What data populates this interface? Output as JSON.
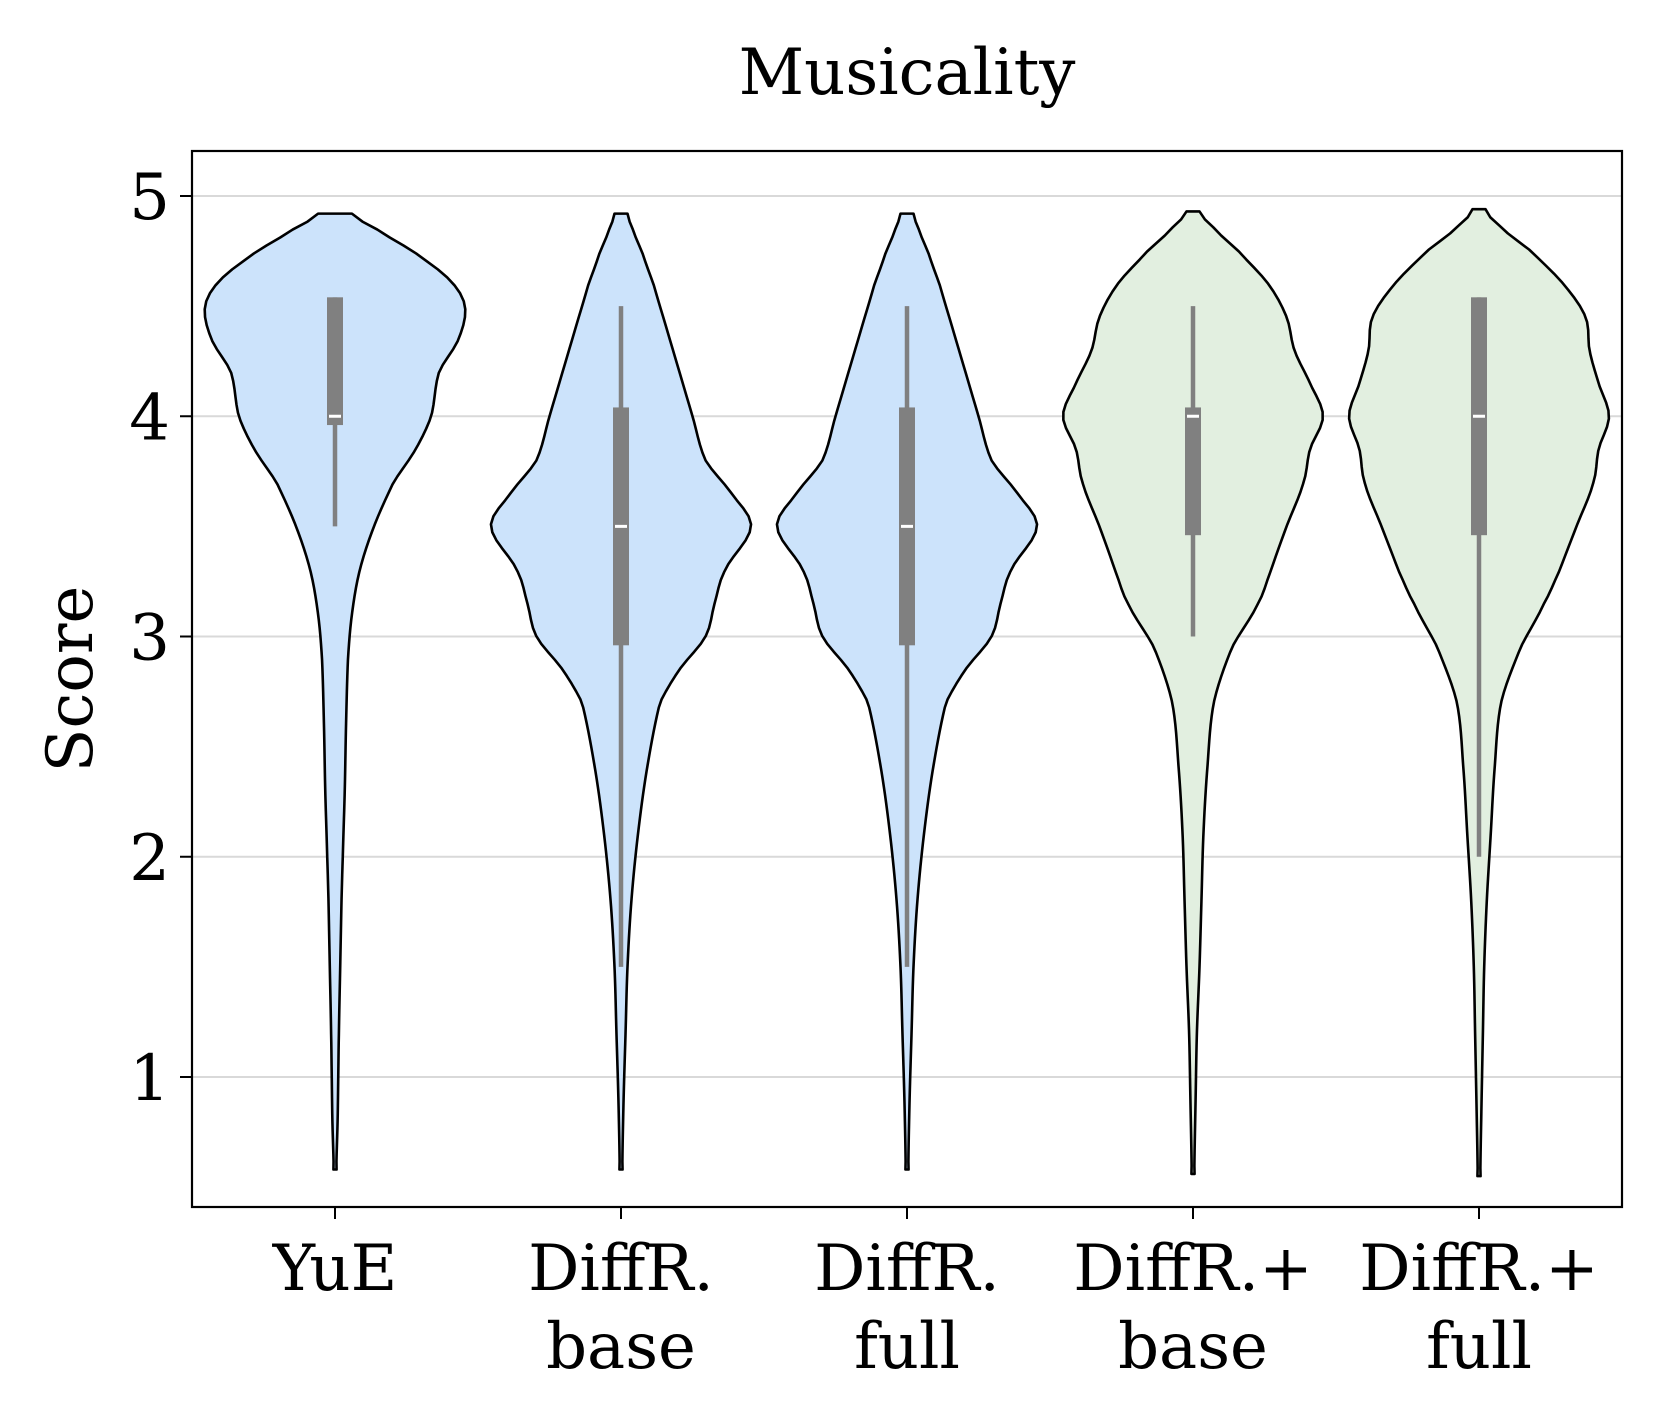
{
  "chart_data": {
    "type": "violin",
    "title": "Musicality",
    "xlabel": "",
    "ylabel": "Score",
    "ylim": [
      0.45,
      5.25
    ],
    "yticks": [
      1,
      2,
      3,
      4,
      5
    ],
    "grid": "horizontal",
    "categories": [
      {
        "label": "YuE",
        "lines": [
          "YuE"
        ],
        "color": "#cce3fb",
        "q1": 3.96,
        "median": 4.0,
        "q3": 4.54,
        "whisker_low": 3.5,
        "whisker_high": 4.54,
        "min": 0.58,
        "max": 4.92,
        "density": [
          [
            0.58,
            0.01
          ],
          [
            0.8,
            0.02
          ],
          [
            1.0,
            0.025
          ],
          [
            1.2,
            0.03
          ],
          [
            1.5,
            0.04
          ],
          [
            1.8,
            0.05
          ],
          [
            2.0,
            0.06
          ],
          [
            2.3,
            0.075
          ],
          [
            2.6,
            0.085
          ],
          [
            2.9,
            0.1
          ],
          [
            3.1,
            0.13
          ],
          [
            3.3,
            0.19
          ],
          [
            3.5,
            0.3
          ],
          [
            3.7,
            0.45
          ],
          [
            3.85,
            0.62
          ],
          [
            4.0,
            0.74
          ],
          [
            4.2,
            0.8
          ],
          [
            4.35,
            0.95
          ],
          [
            4.5,
            1.0
          ],
          [
            4.62,
            0.88
          ],
          [
            4.75,
            0.6
          ],
          [
            4.85,
            0.32
          ],
          [
            4.92,
            0.13
          ]
        ]
      },
      {
        "label": "DiffR. base",
        "lines": [
          "DiffR.",
          "base"
        ],
        "color": "#cce3fb",
        "q1": 2.96,
        "median": 3.5,
        "q3": 4.04,
        "whisker_low": 1.5,
        "whisker_high": 4.5,
        "min": 0.58,
        "max": 4.92,
        "density": [
          [
            0.58,
            0.01
          ],
          [
            0.9,
            0.02
          ],
          [
            1.2,
            0.035
          ],
          [
            1.5,
            0.05
          ],
          [
            1.8,
            0.08
          ],
          [
            2.1,
            0.13
          ],
          [
            2.4,
            0.2
          ],
          [
            2.7,
            0.3
          ],
          [
            2.85,
            0.45
          ],
          [
            3.0,
            0.65
          ],
          [
            3.15,
            0.72
          ],
          [
            3.3,
            0.8
          ],
          [
            3.5,
            1.0
          ],
          [
            3.65,
            0.85
          ],
          [
            3.8,
            0.65
          ],
          [
            4.0,
            0.55
          ],
          [
            4.2,
            0.45
          ],
          [
            4.4,
            0.35
          ],
          [
            4.6,
            0.25
          ],
          [
            4.75,
            0.16
          ],
          [
            4.85,
            0.09
          ],
          [
            4.92,
            0.05
          ]
        ]
      },
      {
        "label": "DiffR. full",
        "lines": [
          "DiffR.",
          "full"
        ],
        "color": "#cce3fb",
        "q1": 2.96,
        "median": 3.5,
        "q3": 4.04,
        "whisker_low": 1.5,
        "whisker_high": 4.5,
        "min": 0.58,
        "max": 4.92,
        "density": [
          [
            0.58,
            0.01
          ],
          [
            0.9,
            0.02
          ],
          [
            1.2,
            0.035
          ],
          [
            1.5,
            0.05
          ],
          [
            1.8,
            0.08
          ],
          [
            2.1,
            0.13
          ],
          [
            2.4,
            0.2
          ],
          [
            2.7,
            0.3
          ],
          [
            2.85,
            0.45
          ],
          [
            3.0,
            0.65
          ],
          [
            3.15,
            0.72
          ],
          [
            3.3,
            0.8
          ],
          [
            3.5,
            1.0
          ],
          [
            3.65,
            0.85
          ],
          [
            3.8,
            0.65
          ],
          [
            4.0,
            0.55
          ],
          [
            4.2,
            0.45
          ],
          [
            4.4,
            0.35
          ],
          [
            4.6,
            0.25
          ],
          [
            4.75,
            0.16
          ],
          [
            4.85,
            0.09
          ],
          [
            4.92,
            0.05
          ]
        ]
      },
      {
        "label": "DiffR.+ base",
        "lines": [
          "DiffR.+",
          "base"
        ],
        "color": "#e2efe0",
        "q1": 3.46,
        "median": 4.0,
        "q3": 4.04,
        "whisker_low": 3.0,
        "whisker_high": 4.5,
        "min": 0.56,
        "max": 4.93,
        "density": [
          [
            0.56,
            0.01
          ],
          [
            0.9,
            0.02
          ],
          [
            1.2,
            0.03
          ],
          [
            1.5,
            0.05
          ],
          [
            1.8,
            0.065
          ],
          [
            2.1,
            0.08
          ],
          [
            2.4,
            0.11
          ],
          [
            2.7,
            0.16
          ],
          [
            2.95,
            0.3
          ],
          [
            3.15,
            0.5
          ],
          [
            3.3,
            0.6
          ],
          [
            3.5,
            0.72
          ],
          [
            3.7,
            0.85
          ],
          [
            3.85,
            0.9
          ],
          [
            4.0,
            1.0
          ],
          [
            4.15,
            0.9
          ],
          [
            4.3,
            0.78
          ],
          [
            4.45,
            0.72
          ],
          [
            4.6,
            0.58
          ],
          [
            4.75,
            0.35
          ],
          [
            4.87,
            0.14
          ],
          [
            4.93,
            0.05
          ]
        ]
      },
      {
        "label": "DiffR.+ full",
        "lines": [
          "DiffR.+",
          "full"
        ],
        "color": "#e2efe0",
        "q1": 3.46,
        "median": 4.0,
        "q3": 4.54,
        "whisker_low": 2.0,
        "whisker_high": 4.54,
        "min": 0.55,
        "max": 4.94,
        "density": [
          [
            0.55,
            0.01
          ],
          [
            0.9,
            0.02
          ],
          [
            1.2,
            0.03
          ],
          [
            1.5,
            0.04
          ],
          [
            1.8,
            0.06
          ],
          [
            2.1,
            0.09
          ],
          [
            2.4,
            0.12
          ],
          [
            2.7,
            0.17
          ],
          [
            2.95,
            0.32
          ],
          [
            3.15,
            0.5
          ],
          [
            3.3,
            0.62
          ],
          [
            3.5,
            0.75
          ],
          [
            3.7,
            0.88
          ],
          [
            3.85,
            0.92
          ],
          [
            4.0,
            1.0
          ],
          [
            4.15,
            0.92
          ],
          [
            4.3,
            0.85
          ],
          [
            4.45,
            0.82
          ],
          [
            4.6,
            0.65
          ],
          [
            4.75,
            0.4
          ],
          [
            4.87,
            0.15
          ],
          [
            4.94,
            0.05
          ]
        ]
      }
    ]
  }
}
